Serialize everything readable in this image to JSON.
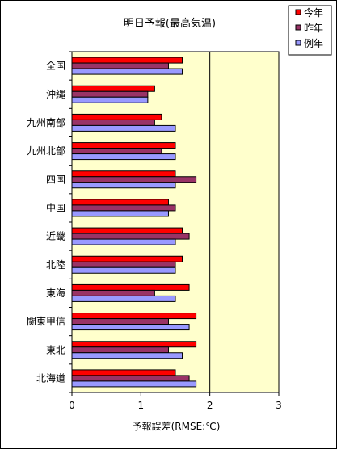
{
  "chart_data": {
    "type": "bar",
    "orientation": "horizontal",
    "title": "明日予報(最高気温)",
    "xlabel": "予報誤差(RMSE:℃)",
    "ylabel": "",
    "xlim": [
      0,
      3
    ],
    "x_ticks": [
      "0",
      "1",
      "2",
      "3"
    ],
    "reference_line": 2,
    "categories": [
      "全国",
      "沖縄",
      "九州南部",
      "九州北部",
      "四国",
      "中国",
      "近畿",
      "北陸",
      "東海",
      "関東甲信",
      "東北",
      "北海道"
    ],
    "series": [
      {
        "name": "今年",
        "color": "#ff0000",
        "values": [
          1.6,
          1.2,
          1.3,
          1.5,
          1.5,
          1.4,
          1.6,
          1.6,
          1.7,
          1.8,
          1.8,
          1.5
        ]
      },
      {
        "name": "昨年",
        "color": "#993366",
        "values": [
          1.4,
          1.1,
          1.2,
          1.3,
          1.8,
          1.5,
          1.7,
          1.5,
          1.2,
          1.4,
          1.4,
          1.7
        ]
      },
      {
        "name": "例年",
        "color": "#9999ff",
        "values": [
          1.6,
          1.1,
          1.5,
          1.5,
          1.5,
          1.4,
          1.5,
          1.5,
          1.5,
          1.7,
          1.6,
          1.8
        ]
      }
    ],
    "grid": false,
    "legend_position": "top-right",
    "plot_background": "#ffffcc"
  }
}
